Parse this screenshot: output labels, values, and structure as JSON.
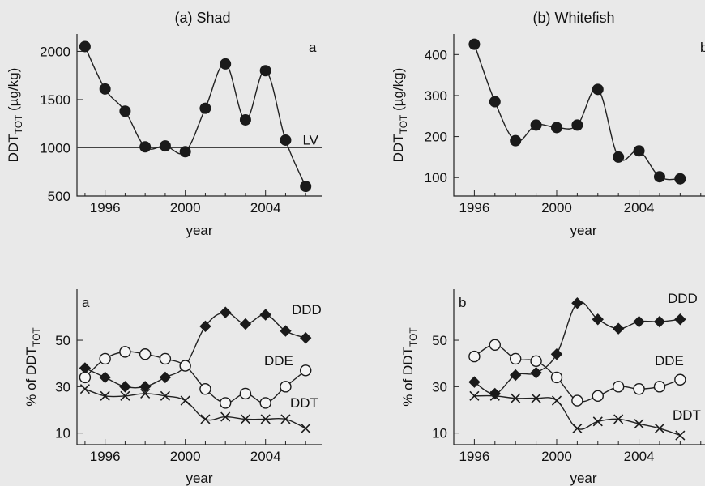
{
  "chart_data": [
    {
      "id": "shad-total",
      "type": "line",
      "title": "(a) Shad",
      "panel_letter": "a",
      "xlabel": "year",
      "ylabel": "DDT",
      "ylabel_sub": "TOT",
      "ylabel_unit": " (µg/kg)",
      "xlim": [
        1994.6,
        2006.8
      ],
      "ylim": [
        500,
        2180
      ],
      "xticks": [
        1996,
        2000,
        2004
      ],
      "yticks": [
        500,
        1000,
        1500,
        2000
      ],
      "grid": false,
      "reference_line": {
        "y": 1000,
        "label": "LV"
      },
      "series": [
        {
          "marker": "filled-circle",
          "x": [
            1995,
            1996,
            1997,
            1998,
            1999,
            2000,
            2001,
            2002,
            2003,
            2004,
            2005,
            2006
          ],
          "y": [
            2050,
            1610,
            1380,
            1010,
            1020,
            960,
            1410,
            1870,
            1290,
            1800,
            1080,
            600
          ]
        }
      ]
    },
    {
      "id": "whitefish-total",
      "type": "line",
      "title": "(b) Whitefish",
      "panel_letter": "b",
      "xlabel": "year",
      "ylabel": "DDT",
      "ylabel_sub": "TOT",
      "ylabel_unit": " (µg/kg)",
      "xlim": [
        1995.0,
        2007.6
      ],
      "ylim": [
        55,
        450
      ],
      "xticks": [
        1996,
        2000,
        2004
      ],
      "yticks": [
        100,
        200,
        300,
        400
      ],
      "grid": false,
      "series": [
        {
          "marker": "filled-circle",
          "x": [
            1996,
            1997,
            1998,
            1999,
            2000,
            2001,
            2002,
            2003,
            2004,
            2005,
            2006
          ],
          "y": [
            425,
            285,
            190,
            228,
            222,
            228,
            315,
            150,
            165,
            102,
            97
          ]
        }
      ]
    },
    {
      "id": "shad-percent",
      "type": "line",
      "panel_letter": "a",
      "xlabel": "year",
      "ylabel": "% of DDT",
      "ylabel_sub": "TOT",
      "xlim": [
        1994.6,
        2006.8
      ],
      "ylim": [
        5,
        72
      ],
      "xticks": [
        1996,
        2000,
        2004
      ],
      "yticks": [
        10,
        30,
        50
      ],
      "grid": false,
      "series": [
        {
          "name": "DDD",
          "marker": "filled-diamond",
          "x": [
            1995,
            1996,
            1997,
            1998,
            1999,
            2000,
            2001,
            2002,
            2003,
            2004,
            2005,
            2006
          ],
          "y": [
            38,
            34,
            30,
            30,
            34,
            39,
            56,
            62,
            57,
            61,
            54,
            51
          ]
        },
        {
          "name": "DDE",
          "marker": "open-circle",
          "x": [
            1995,
            1996,
            1997,
            1998,
            1999,
            2000,
            2001,
            2002,
            2003,
            2004,
            2005,
            2006
          ],
          "y": [
            34,
            42,
            45,
            44,
            42,
            39,
            29,
            23,
            27,
            23,
            30,
            37
          ]
        },
        {
          "name": "DDT",
          "marker": "cross",
          "x": [
            1995,
            1996,
            1997,
            1998,
            1999,
            2000,
            2001,
            2002,
            2003,
            2004,
            2005,
            2006
          ],
          "y": [
            29,
            26,
            26,
            27,
            26,
            24,
            16,
            17,
            16,
            16,
            16,
            12
          ]
        }
      ]
    },
    {
      "id": "whitefish-percent",
      "type": "line",
      "panel_letter": "b",
      "xlabel": "year",
      "ylabel": "% of DDT",
      "ylabel_sub": "TOT",
      "xlim": [
        1995.0,
        2007.6
      ],
      "ylim": [
        5,
        72
      ],
      "xticks": [
        1996,
        2000,
        2004
      ],
      "yticks": [
        10,
        30,
        50
      ],
      "grid": false,
      "series": [
        {
          "name": "DDD",
          "marker": "filled-diamond",
          "x": [
            1996,
            1997,
            1998,
            1999,
            2000,
            2001,
            2002,
            2003,
            2004,
            2005,
            2006
          ],
          "y": [
            32,
            27,
            35,
            36,
            44,
            66,
            59,
            55,
            58,
            58,
            59
          ]
        },
        {
          "name": "DDE",
          "marker": "open-circle",
          "x": [
            1996,
            1997,
            1998,
            1999,
            2000,
            2001,
            2002,
            2003,
            2004,
            2005,
            2006
          ],
          "y": [
            43,
            48,
            42,
            41,
            34,
            24,
            26,
            30,
            29,
            30,
            33
          ]
        },
        {
          "name": "DDT",
          "marker": "cross",
          "x": [
            1996,
            1997,
            1998,
            1999,
            2000,
            2001,
            2002,
            2003,
            2004,
            2005,
            2006
          ],
          "y": [
            26,
            26,
            25,
            25,
            24,
            12,
            15,
            16,
            14,
            12,
            9
          ]
        }
      ]
    }
  ]
}
